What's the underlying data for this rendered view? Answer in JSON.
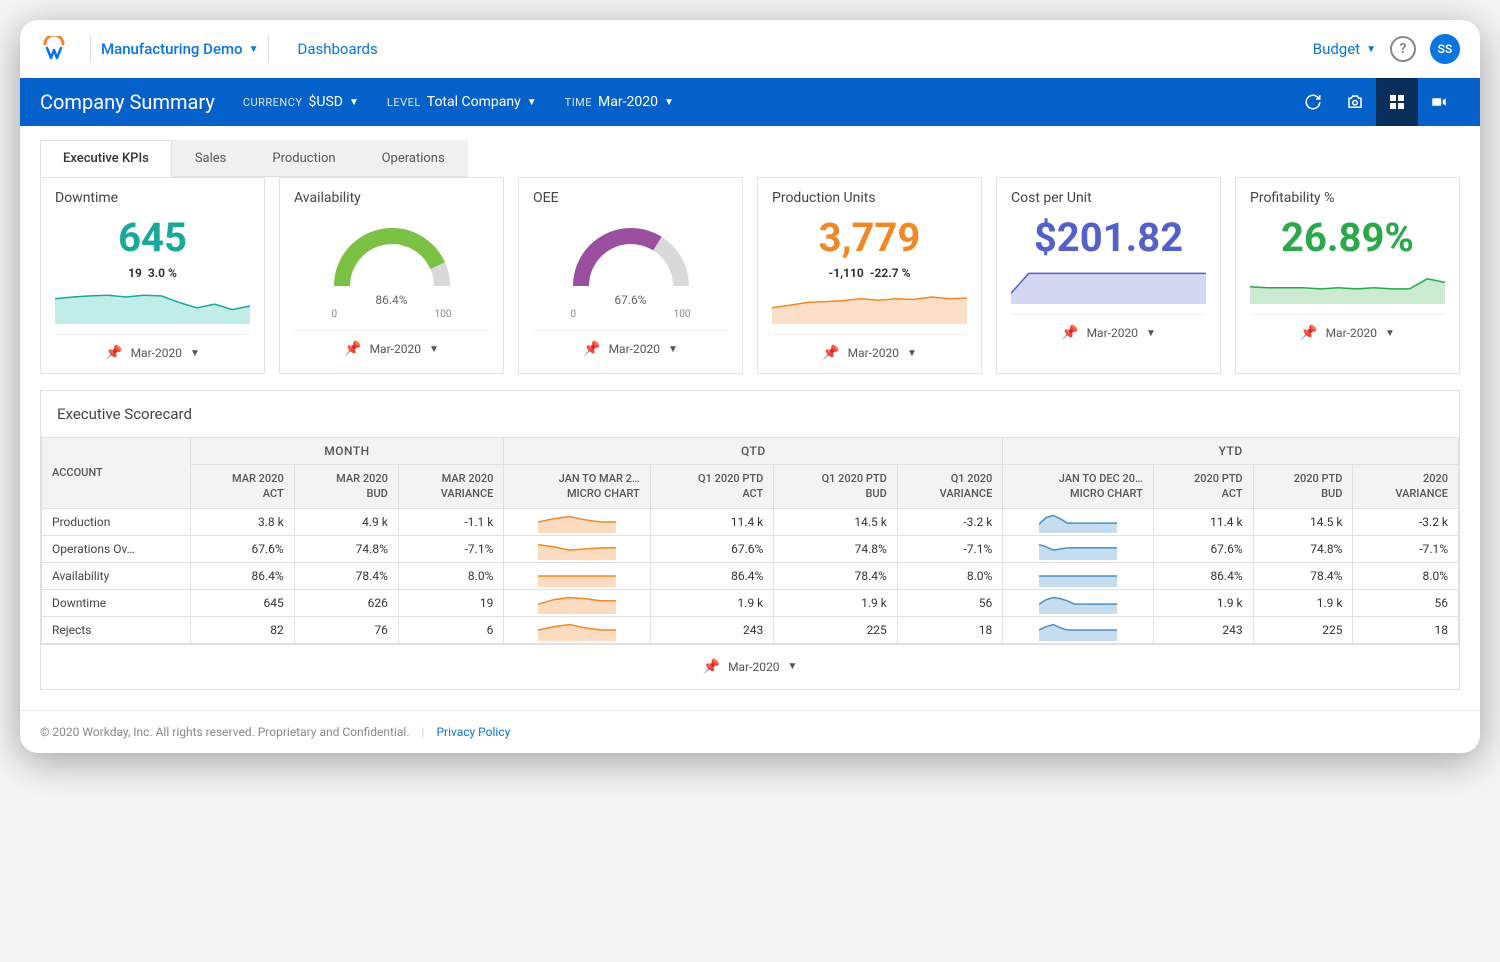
{
  "header": {
    "demo_label": "Manufacturing Demo",
    "dashboards_label": "Dashboards",
    "budget_label": "Budget",
    "avatar_initials": "SS"
  },
  "bluebar": {
    "title": "Company Summary",
    "filters": [
      {
        "label": "TIME",
        "value": "Mar-2020"
      },
      {
        "label": "LEVEL",
        "value": "Total Company"
      },
      {
        "label": "CURRENCY",
        "value": "$USD"
      }
    ]
  },
  "tabs": [
    {
      "label": "Executive KPIs",
      "active": true
    },
    {
      "label": "Sales",
      "active": false
    },
    {
      "label": "Production",
      "active": false
    },
    {
      "label": "Operations",
      "active": false
    }
  ],
  "cards": [
    {
      "id": "downtime",
      "title": "Downtime",
      "type": "number",
      "value": "645",
      "value_color": "#1aa79c",
      "sub1": "19",
      "sub2": "3.0 %",
      "spark": {
        "points": [
          0.3,
          0.25,
          0.22,
          0.2,
          0.25,
          0.2,
          0.22,
          0.4,
          0.55,
          0.45,
          0.6,
          0.5
        ],
        "color": "#1aa79c",
        "fill": "#baebe5"
      },
      "footer": "Mar-2020"
    },
    {
      "id": "availability",
      "title": "Availability",
      "type": "gauge",
      "gauge_value": 86.4,
      "gauge_label": "86.4%",
      "gauge_color": "#7bc143",
      "gauge_bg": "#d9d9d9",
      "scale_min": "0",
      "scale_max": "100",
      "footer": "Mar-2020"
    },
    {
      "id": "oee",
      "title": "OEE",
      "type": "gauge",
      "gauge_value": 67.6,
      "gauge_label": "67.6%",
      "gauge_color": "#9b4fa0",
      "gauge_bg": "#d9d9d9",
      "scale_min": "0",
      "scale_max": "100",
      "footer": "Mar-2020"
    },
    {
      "id": "production",
      "title": "Production Units",
      "type": "number",
      "value": "3,779",
      "value_color": "#f08827",
      "sub1": "-1,110",
      "sub2": "-22.7 %",
      "spark": {
        "points": [
          0.55,
          0.48,
          0.4,
          0.38,
          0.35,
          0.3,
          0.34,
          0.3,
          0.32,
          0.25,
          0.3,
          0.28
        ],
        "color": "#f08827",
        "fill": "#fbdcc0"
      },
      "footer": "Mar-2020"
    },
    {
      "id": "costperunit",
      "title": "Cost per Unit",
      "type": "number",
      "value": "$201.82",
      "value_color": "#5461c8",
      "spark": {
        "points": [
          0.7,
          0.15,
          0.15,
          0.15,
          0.15,
          0.15,
          0.15,
          0.15,
          0.15,
          0.15,
          0.15,
          0.15
        ],
        "color": "#5461c8",
        "fill": "#cfd3ef"
      },
      "footer": "Mar-2020"
    },
    {
      "id": "profitability",
      "title": "Profitability %",
      "type": "number",
      "value": "26.89%",
      "value_color": "#2ba84a",
      "spark": {
        "points": [
          0.52,
          0.55,
          0.55,
          0.55,
          0.58,
          0.55,
          0.58,
          0.55,
          0.58,
          0.58,
          0.3,
          0.4
        ],
        "color": "#2ba84a",
        "fill": "#c6e7cd"
      },
      "footer": "Mar-2020"
    }
  ],
  "scorecard": {
    "title": "Executive Scorecard",
    "groups": [
      "MONTH",
      "QTD",
      "YTD"
    ],
    "columns": {
      "account": "ACCOUNT",
      "month": [
        "MAR 2020\nACT",
        "MAR 2020\nBUD",
        "MAR 2020\nVARIANCE"
      ],
      "qtd": [
        "JAN TO MAR 2…\nMICRO CHART",
        "Q1 2020 PTD\nACT",
        "Q1 2020 PTD\nBUD",
        "Q1 2020\nVARIANCE"
      ],
      "ytd": [
        "JAN TO DEC 20…\nMICRO CHART",
        "2020 PTD\nACT",
        "2020 PTD\nBUD",
        "2020\nVARIANCE"
      ]
    },
    "micro_qtd_color": "#f08827",
    "micro_qtd_fill": "#fbdcc0",
    "micro_ytd_color": "#4a8fc2",
    "micro_ytd_fill": "#c5ddee",
    "rows": [
      {
        "account": "Production",
        "month": [
          "3.8 k",
          "4.9 k",
          "-1.1 k"
        ],
        "qtd_micro": [
          0.5,
          0.35,
          0.25,
          0.4,
          0.5,
          0.5
        ],
        "qtd": [
          "11.4 k",
          "14.5 k",
          "-3.2 k"
        ],
        "ytd_micro": [
          0.6,
          0.3,
          0.2,
          0.35,
          0.55,
          0.55,
          0.55,
          0.55,
          0.55,
          0.55,
          0.55,
          0.55
        ],
        "ytd": [
          "11.4 k",
          "14.5 k",
          "-3.2 k"
        ]
      },
      {
        "account": "Operations Ov…",
        "month": [
          "67.6%",
          "74.8%",
          "-7.1%"
        ],
        "qtd_micro": [
          0.3,
          0.4,
          0.55,
          0.5,
          0.45,
          0.45
        ],
        "qtd": [
          "67.6%",
          "74.8%",
          "-7.1%"
        ],
        "ytd_micro": [
          0.3,
          0.4,
          0.55,
          0.5,
          0.45,
          0.45,
          0.45,
          0.45,
          0.45,
          0.45,
          0.45,
          0.45
        ],
        "ytd": [
          "67.6%",
          "74.8%",
          "-7.1%"
        ]
      },
      {
        "account": "Availability",
        "month": [
          "86.4%",
          "78.4%",
          "8.0%"
        ],
        "qtd_micro": [
          0.5,
          0.5,
          0.5,
          0.5,
          0.5,
          0.5
        ],
        "qtd": [
          "86.4%",
          "78.4%",
          "8.0%"
        ],
        "ytd_micro": [
          0.5,
          0.5,
          0.5,
          0.5,
          0.5,
          0.5,
          0.5,
          0.5,
          0.5,
          0.5,
          0.5,
          0.5
        ],
        "ytd": [
          "86.4%",
          "78.4%",
          "8.0%"
        ]
      },
      {
        "account": "Downtime",
        "month": [
          "645",
          "626",
          "19"
        ],
        "qtd_micro": [
          0.55,
          0.35,
          0.25,
          0.3,
          0.4,
          0.4
        ],
        "qtd": [
          "1.9 k",
          "1.9 k",
          "56"
        ],
        "ytd_micro": [
          0.55,
          0.35,
          0.25,
          0.3,
          0.4,
          0.55,
          0.55,
          0.55,
          0.55,
          0.55,
          0.55,
          0.55
        ],
        "ytd": [
          "1.9 k",
          "1.9 k",
          "56"
        ]
      },
      {
        "account": "Rejects",
        "month": [
          "82",
          "76",
          "6"
        ],
        "qtd_micro": [
          0.5,
          0.35,
          0.25,
          0.4,
          0.5,
          0.5
        ],
        "qtd": [
          "243",
          "225",
          "18"
        ],
        "ytd_micro": [
          0.5,
          0.35,
          0.25,
          0.4,
          0.5,
          0.5,
          0.5,
          0.5,
          0.5,
          0.5,
          0.5,
          0.5
        ],
        "ytd": [
          "243",
          "225",
          "18"
        ]
      }
    ],
    "footer": "Mar-2020"
  },
  "footer": {
    "copyright": "© 2020 Workday, Inc. All rights reserved. Proprietary and Confidential.",
    "privacy": "Privacy Policy"
  }
}
